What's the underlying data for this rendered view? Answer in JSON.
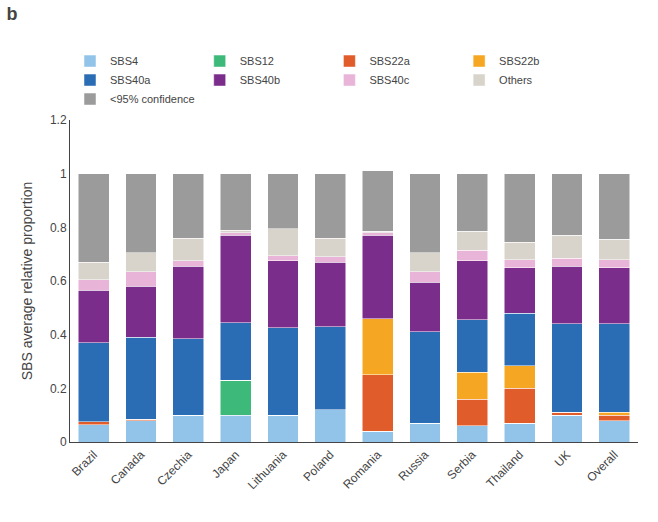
{
  "chart_data": {
    "type": "bar",
    "stacked": true,
    "title": "b",
    "ylabel": "SBS average relative proportion",
    "categories": [
      "Brazil",
      "Canada",
      "Czechia",
      "Japan",
      "Lithuania",
      "Poland",
      "Romania",
      "Russia",
      "Serbia",
      "Thailand",
      "UK",
      "Overall"
    ],
    "series": [
      {
        "name": "SBS4",
        "color": "#91c4e8",
        "values": [
          0.065,
          0.08,
          0.1,
          0.1,
          0.1,
          0.12,
          0.04,
          0.07,
          0.06,
          0.07,
          0.1,
          0.08
        ]
      },
      {
        "name": "SBS12",
        "color": "#3dba7a",
        "values": [
          0.0,
          0.0,
          0.0,
          0.13,
          0.0,
          0.0,
          0.0,
          0.0,
          0.0,
          0.0,
          0.0,
          0.0
        ]
      },
      {
        "name": "SBS22a",
        "color": "#e05c2a",
        "values": [
          0.01,
          0.005,
          0.0,
          0.0,
          0.0,
          0.0,
          0.21,
          0.0,
          0.1,
          0.13,
          0.01,
          0.02
        ]
      },
      {
        "name": "SBS22b",
        "color": "#f5a623",
        "values": [
          0.0,
          0.0,
          0.0,
          0.0,
          0.0,
          0.0,
          0.21,
          0.0,
          0.1,
          0.085,
          0.0,
          0.01
        ]
      },
      {
        "name": "SBS40a",
        "color": "#2a6db5",
        "values": [
          0.295,
          0.305,
          0.285,
          0.215,
          0.325,
          0.31,
          0.0,
          0.34,
          0.195,
          0.195,
          0.33,
          0.33
        ]
      },
      {
        "name": "SBS40b",
        "color": "#7b2d8b",
        "values": [
          0.195,
          0.19,
          0.27,
          0.325,
          0.25,
          0.24,
          0.31,
          0.185,
          0.22,
          0.17,
          0.215,
          0.21
        ]
      },
      {
        "name": "SBS40c",
        "color": "#e8b4d8",
        "values": [
          0.04,
          0.055,
          0.02,
          0.01,
          0.02,
          0.02,
          0.01,
          0.04,
          0.04,
          0.03,
          0.03,
          0.03
        ]
      },
      {
        "name": "Others",
        "color": "#d8d4cc",
        "values": [
          0.065,
          0.07,
          0.085,
          0.01,
          0.1,
          0.07,
          0.005,
          0.07,
          0.07,
          0.065,
          0.085,
          0.075
        ]
      },
      {
        "name": "<95% confidence",
        "color": "#9b9b9b",
        "values": [
          0.33,
          0.295,
          0.24,
          0.21,
          0.205,
          0.24,
          0.225,
          0.295,
          0.215,
          0.255,
          0.23,
          0.245
        ]
      }
    ],
    "ylim": [
      0,
      1.2
    ],
    "yticks": [
      0,
      0.2,
      0.4,
      0.6,
      0.8,
      1,
      1.2
    ],
    "grid": false,
    "legend": "top"
  }
}
